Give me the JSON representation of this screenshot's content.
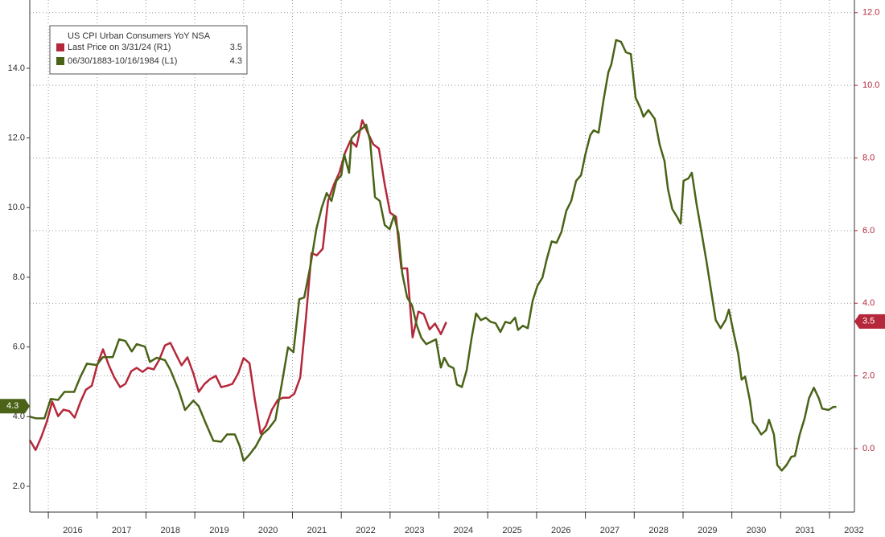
{
  "chart_data": {
    "type": "line",
    "title": "US CPI Urban Consumers YoY NSA",
    "xlim": [
      2015.62,
      2032.51
    ],
    "xticks": [
      2016,
      2017,
      2018,
      2019,
      2020,
      2021,
      2022,
      2023,
      2024,
      2025,
      2026,
      2027,
      2028,
      2029,
      2030,
      2031,
      2032
    ],
    "ylim": [
      1.26,
      15.96
    ],
    "yticks": [
      {
        "value": 2,
        "label": "2.0"
      },
      {
        "value": 4,
        "label": "4.0"
      },
      {
        "value": 6,
        "label": "6.0"
      },
      {
        "value": 8,
        "label": "8.0"
      },
      {
        "value": 10,
        "label": "10.0"
      },
      {
        "value": 12,
        "label": "12.0"
      },
      {
        "value": 14,
        "label": "14.0"
      }
    ],
    "y2lim": [
      -1.75,
      12.35
    ],
    "y2ticks": [
      {
        "value": 0,
        "label": "0.0"
      },
      {
        "value": 2,
        "label": "2.0"
      },
      {
        "value": 4,
        "label": "4.0"
      },
      {
        "value": 6,
        "label": "6.0"
      },
      {
        "value": 8,
        "label": "8.0"
      },
      {
        "value": 10,
        "label": "10.0"
      },
      {
        "value": 12,
        "label": "12.0"
      }
    ],
    "grid": true,
    "series": [
      {
        "name": "Last Price on 3/31/24  (R1)",
        "last_value": 3.5,
        "color": "#b5283b",
        "axis": "y2",
        "x": [
          2015.62,
          2015.74,
          2015.85,
          2015.97,
          2016.08,
          2016.2,
          2016.31,
          2016.43,
          2016.54,
          2016.66,
          2016.77,
          2016.89,
          2017.0,
          2017.12,
          2017.24,
          2017.35,
          2017.47,
          2017.58,
          2017.7,
          2017.81,
          2017.93,
          2018.04,
          2018.16,
          2018.27,
          2018.39,
          2018.5,
          2018.62,
          2018.73,
          2018.85,
          2018.97,
          2019.08,
          2019.2,
          2019.31,
          2019.43,
          2019.54,
          2019.66,
          2019.77,
          2019.89,
          2020.0,
          2020.12,
          2020.23,
          2020.35,
          2020.46,
          2020.58,
          2020.7,
          2020.81,
          2020.93,
          2021.04,
          2021.16,
          2021.27,
          2021.39,
          2021.5,
          2021.62,
          2021.73,
          2021.85,
          2021.96,
          2022.08,
          2022.19,
          2022.31,
          2022.43,
          2022.54,
          2022.66,
          2022.77,
          2022.89,
          2023.0,
          2023.12,
          2023.23,
          2023.35,
          2023.46,
          2023.58,
          2023.69,
          2023.81,
          2023.92,
          2024.04,
          2024.15
        ],
        "values": [
          0.23,
          -0.04,
          0.3,
          0.74,
          1.29,
          0.89,
          1.07,
          1.03,
          0.85,
          1.29,
          1.62,
          1.73,
          2.29,
          2.73,
          2.29,
          1.96,
          1.69,
          1.78,
          2.13,
          2.22,
          2.11,
          2.22,
          2.18,
          2.44,
          2.84,
          2.91,
          2.58,
          2.29,
          2.51,
          2.07,
          1.56,
          1.78,
          1.91,
          2.0,
          1.69,
          1.73,
          1.78,
          2.07,
          2.49,
          2.35,
          1.34,
          0.41,
          0.63,
          1.07,
          1.34,
          1.4,
          1.4,
          1.51,
          1.96,
          3.5,
          5.38,
          5.32,
          5.5,
          6.82,
          7.27,
          7.6,
          8.15,
          8.48,
          8.31,
          9.04,
          8.7,
          8.37,
          8.26,
          7.27,
          6.49,
          6.38,
          4.96,
          4.96,
          3.06,
          3.77,
          3.7,
          3.28,
          3.44,
          3.15,
          3.48
        ]
      },
      {
        "name": "06/30/1883-10/16/1984  (L1)",
        "last_value": 4.3,
        "color": "#4a6317",
        "x": [
          2015.62,
          2015.75,
          2015.92,
          2016.05,
          2016.2,
          2016.33,
          2016.53,
          2016.66,
          2016.79,
          2016.99,
          2017.12,
          2017.32,
          2017.45,
          2017.58,
          2017.71,
          2017.81,
          2017.98,
          2018.08,
          2018.22,
          2018.39,
          2018.5,
          2018.67,
          2018.8,
          2018.97,
          2019.08,
          2019.23,
          2019.38,
          2019.54,
          2019.66,
          2019.82,
          2019.92,
          2020.0,
          2020.12,
          2020.25,
          2020.38,
          2020.51,
          2020.65,
          2020.78,
          2020.91,
          2021.02,
          2021.14,
          2021.24,
          2021.37,
          2021.49,
          2021.6,
          2021.7,
          2021.8,
          2021.9,
          2022.0,
          2022.06,
          2022.16,
          2022.21,
          2022.31,
          2022.43,
          2022.51,
          2022.59,
          2022.69,
          2022.79,
          2022.89,
          2022.99,
          2023.08,
          2023.17,
          2023.25,
          2023.35,
          2023.45,
          2023.55,
          2023.64,
          2023.74,
          2023.84,
          2023.94,
          2024.04,
          2024.11,
          2024.2,
          2024.3,
          2024.37,
          2024.47,
          2024.57,
          2024.67,
          2024.76,
          2024.86,
          2024.96,
          2025.06,
          2025.16,
          2025.26,
          2025.36,
          2025.46,
          2025.56,
          2025.62,
          2025.72,
          2025.82,
          2025.92,
          2026.02,
          2026.12,
          2026.21,
          2026.31,
          2026.41,
          2026.51,
          2026.61,
          2026.71,
          2026.81,
          2026.91,
          2027.0,
          2027.1,
          2027.17,
          2027.27,
          2027.37,
          2027.47,
          2027.53,
          2027.63,
          2027.73,
          2027.83,
          2027.93,
          2028.03,
          2028.13,
          2028.19,
          2028.29,
          2028.42,
          2028.52,
          2028.62,
          2028.69,
          2028.78,
          2028.88,
          2028.95,
          2029.01,
          2029.11,
          2029.18,
          2029.28,
          2029.38,
          2029.48,
          2029.57,
          2029.67,
          2029.77,
          2029.87,
          2029.94,
          2030.04,
          2030.13,
          2030.2,
          2030.27,
          2030.37,
          2030.43,
          2030.5,
          2030.6,
          2030.7,
          2030.76,
          2030.86,
          2030.93,
          2031.02,
          2031.12,
          2031.22,
          2031.29,
          2031.39,
          2031.49,
          2031.58,
          2031.68,
          2031.78,
          2031.85,
          2031.98,
          2032.08,
          2032.14
        ],
        "values": [
          4.0,
          3.95,
          3.95,
          4.51,
          4.48,
          4.71,
          4.71,
          5.15,
          5.52,
          5.48,
          5.71,
          5.71,
          6.22,
          6.17,
          5.87,
          6.08,
          6.01,
          5.57,
          5.69,
          5.62,
          5.34,
          4.76,
          4.19,
          4.46,
          4.3,
          3.79,
          3.31,
          3.28,
          3.49,
          3.49,
          3.15,
          2.73,
          2.91,
          3.15,
          3.49,
          3.65,
          3.91,
          4.92,
          5.99,
          5.85,
          7.37,
          7.42,
          8.34,
          9.38,
          10.0,
          10.42,
          10.19,
          10.77,
          10.93,
          11.53,
          11.0,
          11.99,
          12.15,
          12.27,
          12.38,
          11.92,
          10.3,
          10.19,
          9.5,
          9.38,
          9.77,
          9.27,
          8.11,
          7.42,
          7.19,
          6.61,
          6.26,
          6.08,
          6.15,
          6.22,
          5.41,
          5.69,
          5.46,
          5.39,
          4.92,
          4.85,
          5.34,
          6.26,
          6.96,
          6.77,
          6.84,
          6.72,
          6.68,
          6.43,
          6.72,
          6.68,
          6.84,
          6.49,
          6.61,
          6.54,
          7.33,
          7.76,
          7.99,
          8.53,
          9.03,
          8.99,
          9.31,
          9.91,
          10.19,
          10.77,
          10.93,
          11.53,
          12.08,
          12.22,
          12.15,
          13.08,
          13.88,
          14.11,
          14.81,
          14.76,
          14.46,
          14.41,
          13.15,
          12.85,
          12.61,
          12.8,
          12.55,
          11.81,
          11.34,
          10.54,
          9.96,
          9.73,
          9.54,
          10.77,
          10.84,
          11.0,
          10.07,
          9.27,
          8.46,
          7.65,
          6.77,
          6.54,
          6.77,
          7.07,
          6.38,
          5.8,
          5.06,
          5.15,
          4.46,
          3.84,
          3.72,
          3.49,
          3.61,
          3.91,
          3.49,
          2.61,
          2.45,
          2.61,
          2.85,
          2.87,
          3.49,
          3.95,
          4.53,
          4.83,
          4.53,
          4.23,
          4.19,
          4.28,
          4.28
        ]
      }
    ]
  }
}
